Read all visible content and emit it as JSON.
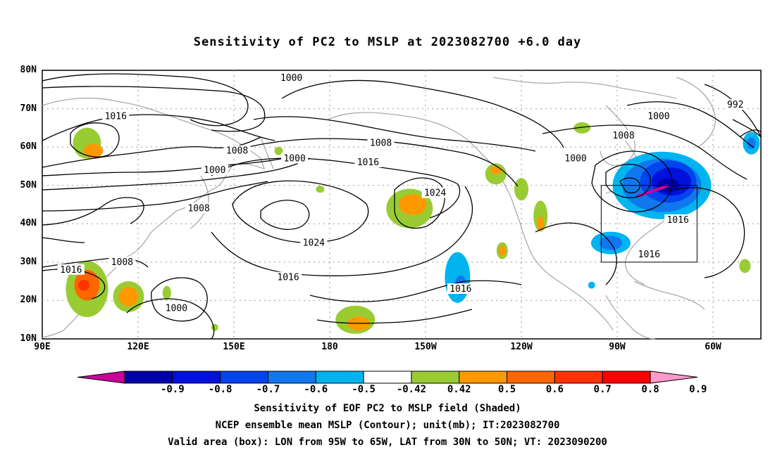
{
  "title": "Sensitivity of PC2 to MSLP at 2023082700 +6.0 day",
  "lat_labels": [
    "80N",
    "70N",
    "60N",
    "50N",
    "40N",
    "30N",
    "20N",
    "10N"
  ],
  "lon_labels": [
    "90E",
    "120E",
    "150E",
    "180",
    "150W",
    "120W",
    "90W",
    "60W"
  ],
  "contour_labels": [
    {
      "text": "1000",
      "lon": 168,
      "lat": 78
    },
    {
      "text": "992",
      "lon": 307,
      "lat": 71
    },
    {
      "text": "1016",
      "lon": 113,
      "lat": 68
    },
    {
      "text": "1000",
      "lon": 283,
      "lat": 68
    },
    {
      "text": "1008",
      "lon": 272,
      "lat": 63
    },
    {
      "text": "1008",
      "lon": 196,
      "lat": 61
    },
    {
      "text": "1008",
      "lon": 151,
      "lat": 59
    },
    {
      "text": "1000",
      "lon": 169,
      "lat": 57
    },
    {
      "text": "1000",
      "lon": 257,
      "lat": 57
    },
    {
      "text": "1016",
      "lon": 192,
      "lat": 56
    },
    {
      "text": "1000",
      "lon": 144,
      "lat": 54
    },
    {
      "text": "1024",
      "lon": 213,
      "lat": 48
    },
    {
      "text": "1016",
      "lon": 289,
      "lat": 41
    },
    {
      "text": "1008",
      "lon": 139,
      "lat": 44
    },
    {
      "text": "1024",
      "lon": 175,
      "lat": 35
    },
    {
      "text": "1016",
      "lon": 280,
      "lat": 32
    },
    {
      "text": "1008",
      "lon": 115,
      "lat": 30
    },
    {
      "text": "1016",
      "lon": 99,
      "lat": 28
    },
    {
      "text": "1016",
      "lon": 167,
      "lat": 26
    },
    {
      "text": "1016",
      "lon": 221,
      "lat": 23
    },
    {
      "text": "1000",
      "lon": 132,
      "lat": 18
    }
  ],
  "colorbar": {
    "labels": [
      "-0.9",
      "-0.8",
      "-0.7",
      "-0.6",
      "-0.5",
      "-0.42",
      "0.42",
      "0.5",
      "0.6",
      "0.7",
      "0.8",
      "0.9"
    ],
    "colors": [
      "#cc0099",
      "#0000aa",
      "#0011dd",
      "#0044ee",
      "#1177ee",
      "#00b4f0",
      "#ffffff",
      "#99cc33",
      "#ff9900",
      "#ff6600",
      "#ff3300",
      "#ff0000",
      "#ff99cc"
    ]
  },
  "valid_box": {
    "lon_w": 95,
    "lon_e": 65,
    "lat_s": 30,
    "lat_n": 50
  },
  "captions": {
    "line1": "Sensitivity of EOF PC2 to MSLP field (Shaded)",
    "line2": "NCEP ensemble mean MSLP (Contour); unit(mb); IT:2023082700",
    "line3": "Valid area (box): LON from 95W to 65W, LAT from 30N to 50N; VT: 2023090200"
  }
}
